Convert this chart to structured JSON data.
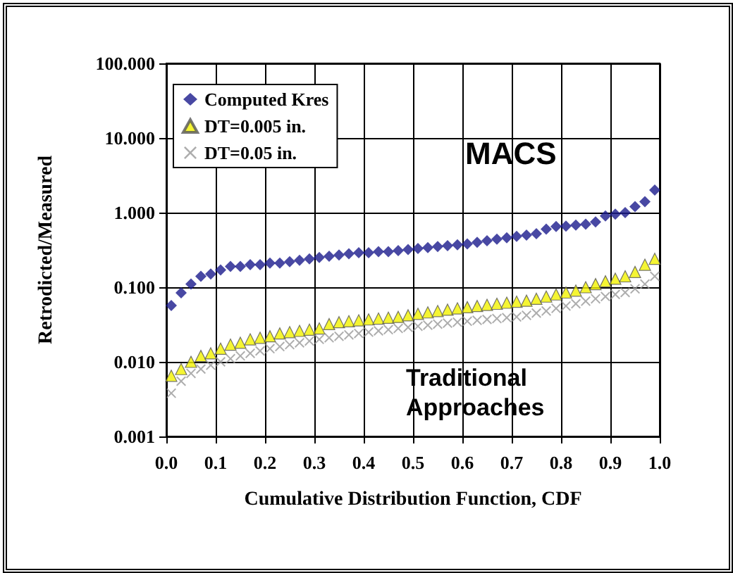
{
  "chart_data": {
    "type": "scatter",
    "xlabel": "Cumulative Distribution Function, CDF",
    "ylabel": "Retrodicted/Measured",
    "x": [
      0.01,
      0.03,
      0.05,
      0.07,
      0.09,
      0.11,
      0.13,
      0.15,
      0.17,
      0.19,
      0.21,
      0.23,
      0.25,
      0.27,
      0.29,
      0.31,
      0.33,
      0.35,
      0.37,
      0.39,
      0.41,
      0.43,
      0.45,
      0.47,
      0.49,
      0.51,
      0.53,
      0.55,
      0.57,
      0.59,
      0.61,
      0.63,
      0.65,
      0.67,
      0.69,
      0.71,
      0.73,
      0.75,
      0.77,
      0.79,
      0.81,
      0.83,
      0.85,
      0.87,
      0.89,
      0.91,
      0.93,
      0.95,
      0.97,
      0.99
    ],
    "series": [
      {
        "name": "Computed Kres",
        "color": "#1a1a8c",
        "marker": "diamond",
        "values": [
          0.057,
          0.084,
          0.11,
          0.14,
          0.15,
          0.17,
          0.19,
          0.19,
          0.2,
          0.2,
          0.21,
          0.21,
          0.22,
          0.23,
          0.24,
          0.25,
          0.26,
          0.27,
          0.28,
          0.29,
          0.29,
          0.3,
          0.3,
          0.31,
          0.32,
          0.33,
          0.34,
          0.35,
          0.36,
          0.37,
          0.38,
          0.4,
          0.42,
          0.44,
          0.46,
          0.48,
          0.5,
          0.52,
          0.6,
          0.65,
          0.66,
          0.68,
          0.7,
          0.75,
          0.9,
          0.95,
          1.0,
          1.2,
          1.4,
          2.0
        ]
      },
      {
        "name": "DT=0.005 in.",
        "color": "#f2f200",
        "marker": "triangle",
        "values": [
          0.0065,
          0.008,
          0.01,
          0.012,
          0.013,
          0.015,
          0.017,
          0.018,
          0.02,
          0.021,
          0.022,
          0.024,
          0.025,
          0.026,
          0.027,
          0.028,
          0.032,
          0.034,
          0.035,
          0.036,
          0.037,
          0.038,
          0.039,
          0.04,
          0.042,
          0.044,
          0.046,
          0.048,
          0.05,
          0.052,
          0.054,
          0.056,
          0.058,
          0.06,
          0.062,
          0.064,
          0.066,
          0.07,
          0.075,
          0.08,
          0.085,
          0.09,
          0.1,
          0.11,
          0.12,
          0.13,
          0.14,
          0.16,
          0.2,
          0.24
        ]
      },
      {
        "name": "DT=0.05 in.",
        "color": "#999999",
        "marker": "cross",
        "values": [
          0.0038,
          0.0055,
          0.007,
          0.008,
          0.009,
          0.01,
          0.011,
          0.012,
          0.013,
          0.014,
          0.015,
          0.016,
          0.017,
          0.018,
          0.019,
          0.02,
          0.021,
          0.022,
          0.023,
          0.024,
          0.025,
          0.026,
          0.027,
          0.028,
          0.029,
          0.03,
          0.031,
          0.032,
          0.033,
          0.034,
          0.035,
          0.036,
          0.037,
          0.038,
          0.039,
          0.04,
          0.042,
          0.045,
          0.048,
          0.052,
          0.056,
          0.06,
          0.065,
          0.07,
          0.075,
          0.08,
          0.085,
          0.095,
          0.11,
          0.14
        ]
      }
    ],
    "log": "y",
    "grid": true,
    "legend": "top left",
    "xlim": [
      0,
      1
    ],
    "xticks": [
      {
        "value": 0,
        "label": "0.0"
      },
      {
        "value": 0.1,
        "label": "0.1"
      },
      {
        "value": 0.2,
        "label": "0.2"
      },
      {
        "value": 0.3,
        "label": "0.3"
      },
      {
        "value": 0.4,
        "label": "0.4"
      },
      {
        "value": 0.5,
        "label": "0.5"
      },
      {
        "value": 0.6,
        "label": "0.6"
      },
      {
        "value": 0.7,
        "label": "0.7"
      },
      {
        "value": 0.8,
        "label": "0.8"
      },
      {
        "value": 0.9,
        "label": "0.9"
      },
      {
        "value": 1,
        "label": "1.0"
      }
    ],
    "ylim": [
      0.001,
      100
    ],
    "yticks": [
      {
        "value": 0.001,
        "label": "0.001"
      },
      {
        "value": 0.01,
        "label": "0.010"
      },
      {
        "value": 0.1,
        "label": "0.100"
      },
      {
        "value": 1,
        "label": "1.000"
      },
      {
        "value": 10,
        "label": "10.000"
      },
      {
        "value": 100,
        "label": "100.000"
      }
    ],
    "annotations": [
      "MACS",
      "Traditional Approaches"
    ]
  }
}
